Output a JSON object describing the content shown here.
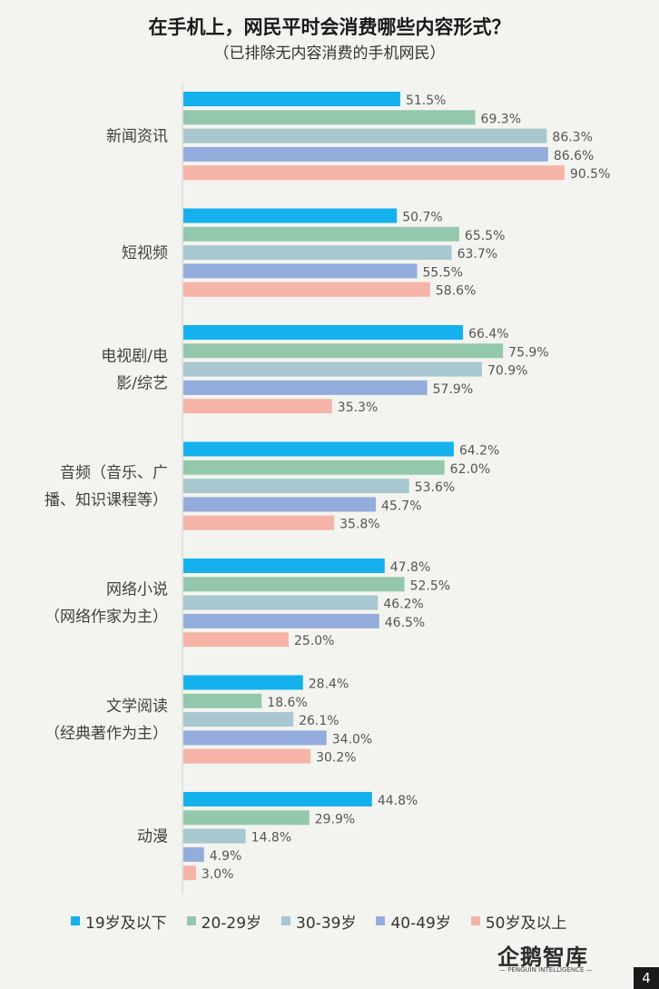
{
  "header": {
    "title": "在手机上，网民平时会消费哪些内容形式？",
    "subtitle": "（已排除无内容消费的手机网民）"
  },
  "logo": {
    "text": "企鹅智库",
    "subtext": "— PENGUIN INTELLIGENCE —"
  },
  "page_number": "4",
  "chart_data": {
    "type": "bar",
    "orientation": "horizontal",
    "title": "在手机上，网民平时会消费哪些内容形式？",
    "subtitle": "（已排除无内容消费的手机网民）",
    "categories": [
      [
        "新闻资讯"
      ],
      [
        "短视频"
      ],
      [
        "电视剧/电",
        "影/综艺"
      ],
      [
        "音频（音乐、广",
        "播、知识课程等）"
      ],
      [
        "网络小说",
        "（网络作家为主）"
      ],
      [
        "文学阅读",
        "（经典著作为主）"
      ],
      [
        "动漫"
      ]
    ],
    "series": [
      {
        "name": "19岁及以下",
        "color": "#14b1ec",
        "values": [
          51.5,
          50.7,
          66.4,
          64.2,
          47.8,
          28.4,
          44.8
        ]
      },
      {
        "name": "20-29岁",
        "color": "#93c8ac",
        "values": [
          69.3,
          65.5,
          75.9,
          62.0,
          52.5,
          18.6,
          29.9
        ]
      },
      {
        "name": "30-39岁",
        "color": "#a8c7cf",
        "values": [
          86.3,
          63.7,
          70.9,
          53.6,
          46.2,
          26.1,
          14.8
        ]
      },
      {
        "name": "40-49岁",
        "color": "#94acdc",
        "values": [
          86.6,
          55.5,
          57.9,
          45.7,
          46.5,
          34.0,
          4.9
        ]
      },
      {
        "name": "50岁及以上",
        "color": "#f6b4a8",
        "values": [
          90.5,
          58.6,
          35.3,
          35.8,
          25.0,
          30.2,
          3.0
        ]
      }
    ],
    "value_suffix": "%",
    "xlim": [
      0,
      100
    ],
    "grid": false,
    "legend_position": "bottom"
  }
}
